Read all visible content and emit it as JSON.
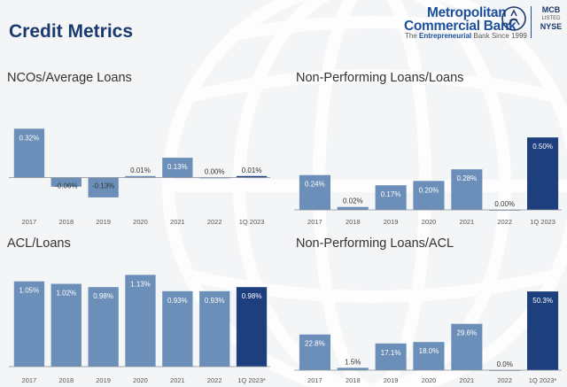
{
  "header": {
    "title": "Credit Metrics"
  },
  "logo": {
    "line1": "Metropolitan",
    "line2": "Commercial Bank",
    "tagline_prefix": "The ",
    "tagline_bold": "Entrepreneurial",
    "tagline_suffix": " Bank Since 1999",
    "ticker": "MCB",
    "listed": "LISTED",
    "exchange": "NYSE"
  },
  "colors": {
    "bar": "#6b8fb8",
    "bar_highlight": "#1d3f7e",
    "title": "#1a3a6e",
    "text": "#333333",
    "axis": "#555555"
  },
  "chart_data": [
    {
      "type": "bar",
      "title": "NCOs/Average Loans",
      "categories": [
        "2017",
        "2018",
        "2019",
        "2020",
        "2021",
        "2022",
        "1Q 2023"
      ],
      "values": [
        0.32,
        -0.06,
        -0.13,
        0.01,
        0.13,
        0.0,
        0.01
      ],
      "labels": [
        "0.32%",
        "-0.06%",
        "-0.13%",
        "0.01%",
        "0.13%",
        "0.00%",
        "0.01%"
      ],
      "highlight_index": 6,
      "ylim": [
        -0.2,
        0.38
      ]
    },
    {
      "type": "bar",
      "title": "Non-Performing Loans/Loans",
      "categories": [
        "2017",
        "2018",
        "2019",
        "2020",
        "2021",
        "2022",
        "1Q 2023"
      ],
      "values": [
        0.24,
        0.02,
        0.17,
        0.2,
        0.28,
        0.0,
        0.5
      ],
      "labels": [
        "0.24%",
        "0.02%",
        "0.17%",
        "0.20%",
        "0.28%",
        "0.00%",
        "0.50%"
      ],
      "highlight_index": 6,
      "ylim": [
        0,
        0.55
      ]
    },
    {
      "type": "bar",
      "title": "ACL/Loans",
      "categories": [
        "2017",
        "2018",
        "2019",
        "2020",
        "2021",
        "2022",
        "1Q 2023*"
      ],
      "values": [
        1.05,
        1.02,
        0.98,
        1.13,
        0.93,
        0.93,
        0.98
      ],
      "labels": [
        "1.05%",
        "1.02%",
        "0.98%",
        "1.13%",
        "0.93%",
        "0.93%",
        "0.98%"
      ],
      "highlight_index": 6,
      "ylim": [
        0,
        1.2
      ]
    },
    {
      "type": "bar",
      "title": "Non-Performing Loans/ACL",
      "categories": [
        "2017",
        "2018",
        "2019",
        "2020",
        "2021",
        "2022",
        "1Q 2023*"
      ],
      "values": [
        22.8,
        1.5,
        17.1,
        18.0,
        29.6,
        0.0,
        50.3
      ],
      "labels": [
        "22.8%",
        "1.5%",
        "17.1%",
        "18.0%",
        "29.6%",
        "0.0%",
        "50.3%"
      ],
      "highlight_index": 6,
      "ylim": [
        0,
        56
      ]
    }
  ]
}
